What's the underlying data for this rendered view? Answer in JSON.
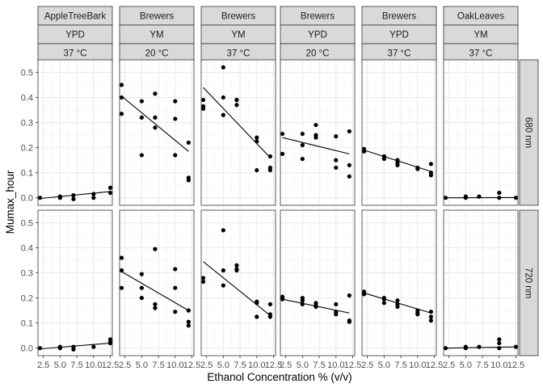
{
  "chart_data": {
    "type": "scatter",
    "xlabel": "Ethanol Concentration % (v/v)",
    "ylabel": "Mumax_hour",
    "xlim": [
      1.7,
      12.8
    ],
    "ylim": [
      -0.03,
      0.55
    ],
    "x_ticks": [
      2.5,
      5.0,
      7.5,
      10.0,
      12.5
    ],
    "x_tick_labels": [
      "2.5",
      "5.0",
      "7.5",
      "10.0",
      "12.5"
    ],
    "y_ticks": [
      0.0,
      0.1,
      0.2,
      0.3,
      0.4,
      0.5
    ],
    "y_tick_labels": [
      "0.0",
      "0.1",
      "0.2",
      "0.3",
      "0.4",
      "0.5"
    ],
    "grid": true,
    "facet_columns": [
      {
        "labels": [
          "AppleTreeBark",
          "YPD",
          "37 °C"
        ]
      },
      {
        "labels": [
          "Brewers",
          "YM",
          "20 °C"
        ]
      },
      {
        "labels": [
          "Brewers",
          "YM",
          "37 °C"
        ]
      },
      {
        "labels": [
          "Brewers",
          "YPD",
          "20 °C"
        ]
      },
      {
        "labels": [
          "Brewers",
          "YPD",
          "37 °C"
        ]
      },
      {
        "labels": [
          "OakLeaves",
          "YM",
          "37 °C"
        ]
      }
    ],
    "facet_rows": [
      "680 nm",
      "720 nm"
    ],
    "panels": [
      {
        "row": 0,
        "col": 0,
        "points": [
          [
            2,
            0.0
          ],
          [
            5,
            0.005
          ],
          [
            5,
            0.0
          ],
          [
            7,
            0.01
          ],
          [
            7,
            -0.005
          ],
          [
            10,
            0.015
          ],
          [
            10,
            0.0
          ],
          [
            12.5,
            0.02
          ],
          [
            12.5,
            0.04
          ]
        ],
        "fit": [
          [
            2,
            -0.003
          ],
          [
            12.5,
            0.025
          ]
        ]
      },
      {
        "row": 0,
        "col": 1,
        "points": [
          [
            2,
            0.45
          ],
          [
            2,
            0.4
          ],
          [
            2,
            0.335
          ],
          [
            5,
            0.385
          ],
          [
            5,
            0.32
          ],
          [
            5,
            0.17
          ],
          [
            7,
            0.415
          ],
          [
            7,
            0.32
          ],
          [
            7,
            0.28
          ],
          [
            10,
            0.385
          ],
          [
            10,
            0.315
          ],
          [
            10,
            0.17
          ],
          [
            12,
            0.22
          ],
          [
            12,
            0.08
          ],
          [
            12,
            0.07
          ]
        ],
        "fit": [
          [
            2,
            0.405
          ],
          [
            12,
            0.185
          ]
        ]
      },
      {
        "row": 0,
        "col": 2,
        "points": [
          [
            2,
            0.39
          ],
          [
            2,
            0.365
          ],
          [
            2,
            0.355
          ],
          [
            5,
            0.52
          ],
          [
            5,
            0.4
          ],
          [
            5,
            0.33
          ],
          [
            7,
            0.39
          ],
          [
            7,
            0.39
          ],
          [
            7,
            0.37
          ],
          [
            10,
            0.24
          ],
          [
            10,
            0.225
          ],
          [
            10,
            0.11
          ],
          [
            12,
            0.165
          ],
          [
            12,
            0.12
          ],
          [
            12,
            0.11
          ]
        ],
        "fit": [
          [
            2,
            0.44
          ],
          [
            12,
            0.16
          ]
        ]
      },
      {
        "row": 0,
        "col": 3,
        "points": [
          [
            2,
            0.255
          ],
          [
            2,
            0.175
          ],
          [
            5,
            0.255
          ],
          [
            5,
            0.21
          ],
          [
            5,
            0.155
          ],
          [
            7,
            0.29
          ],
          [
            7,
            0.25
          ],
          [
            7,
            0.24
          ],
          [
            10,
            0.245
          ],
          [
            10,
            0.15
          ],
          [
            10,
            0.12
          ],
          [
            12,
            0.265
          ],
          [
            12,
            0.13
          ],
          [
            12,
            0.085
          ]
        ],
        "fit": [
          [
            2,
            0.24
          ],
          [
            12,
            0.175
          ]
        ]
      },
      {
        "row": 0,
        "col": 4,
        "points": [
          [
            2,
            0.195
          ],
          [
            2,
            0.185
          ],
          [
            5,
            0.165
          ],
          [
            5,
            0.165
          ],
          [
            5,
            0.155
          ],
          [
            7,
            0.15
          ],
          [
            7,
            0.14
          ],
          [
            7,
            0.13
          ],
          [
            10,
            0.12
          ],
          [
            10,
            0.115
          ],
          [
            12,
            0.135
          ],
          [
            12,
            0.1
          ],
          [
            12,
            0.09
          ]
        ],
        "fit": [
          [
            2,
            0.19
          ],
          [
            12,
            0.105
          ]
        ]
      },
      {
        "row": 0,
        "col": 5,
        "points": [
          [
            2,
            0.0
          ],
          [
            5,
            0.0
          ],
          [
            5,
            0.005
          ],
          [
            7,
            0.005
          ],
          [
            10,
            0.02
          ],
          [
            10,
            0.0
          ],
          [
            12.5,
            0.0
          ]
        ],
        "fit": [
          [
            2,
            0.0
          ],
          [
            12.5,
            0.001
          ]
        ]
      },
      {
        "row": 1,
        "col": 0,
        "points": [
          [
            2,
            0.0
          ],
          [
            5,
            0.005
          ],
          [
            5,
            0.0
          ],
          [
            7,
            0.005
          ],
          [
            7,
            -0.005
          ],
          [
            10,
            0.005
          ],
          [
            12.5,
            0.02
          ],
          [
            12.5,
            0.035
          ],
          [
            12.5,
            0.025
          ]
        ],
        "fit": [
          [
            2,
            -0.003
          ],
          [
            12.5,
            0.02
          ]
        ]
      },
      {
        "row": 1,
        "col": 1,
        "points": [
          [
            2,
            0.36
          ],
          [
            2,
            0.31
          ],
          [
            2,
            0.24
          ],
          [
            5,
            0.295
          ],
          [
            5,
            0.24
          ],
          [
            5,
            0.2
          ],
          [
            7,
            0.395
          ],
          [
            7,
            0.175
          ],
          [
            7,
            0.16
          ],
          [
            10,
            0.315
          ],
          [
            10,
            0.24
          ],
          [
            10,
            0.145
          ],
          [
            12,
            0.15
          ],
          [
            12,
            0.105
          ],
          [
            12,
            0.09
          ]
        ],
        "fit": [
          [
            2,
            0.305
          ],
          [
            12,
            0.15
          ]
        ]
      },
      {
        "row": 1,
        "col": 2,
        "points": [
          [
            2,
            0.28
          ],
          [
            2,
            0.265
          ],
          [
            5,
            0.47
          ],
          [
            5,
            0.31
          ],
          [
            5,
            0.25
          ],
          [
            7,
            0.33
          ],
          [
            7,
            0.315
          ],
          [
            7,
            0.31
          ],
          [
            10,
            0.185
          ],
          [
            10,
            0.18
          ],
          [
            10,
            0.125
          ],
          [
            12,
            0.175
          ],
          [
            12,
            0.135
          ],
          [
            12,
            0.125
          ]
        ],
        "fit": [
          [
            2,
            0.345
          ],
          [
            12,
            0.13
          ]
        ]
      },
      {
        "row": 1,
        "col": 3,
        "points": [
          [
            2,
            0.205
          ],
          [
            2,
            0.2
          ],
          [
            2,
            0.195
          ],
          [
            5,
            0.2
          ],
          [
            5,
            0.19
          ],
          [
            5,
            0.175
          ],
          [
            7,
            0.18
          ],
          [
            7,
            0.17
          ],
          [
            7,
            0.165
          ],
          [
            10,
            0.175
          ],
          [
            10,
            0.145
          ],
          [
            10,
            0.135
          ],
          [
            12,
            0.21
          ],
          [
            12,
            0.11
          ],
          [
            12,
            0.105
          ]
        ],
        "fit": [
          [
            2,
            0.195
          ],
          [
            12,
            0.14
          ]
        ]
      },
      {
        "row": 1,
        "col": 4,
        "points": [
          [
            2,
            0.225
          ],
          [
            2,
            0.215
          ],
          [
            5,
            0.2
          ],
          [
            5,
            0.195
          ],
          [
            5,
            0.18
          ],
          [
            7,
            0.19
          ],
          [
            7,
            0.175
          ],
          [
            7,
            0.165
          ],
          [
            10,
            0.15
          ],
          [
            10,
            0.14
          ],
          [
            10,
            0.135
          ],
          [
            12,
            0.145
          ],
          [
            12,
            0.125
          ],
          [
            12,
            0.11
          ]
        ],
        "fit": [
          [
            2,
            0.22
          ],
          [
            12,
            0.14
          ]
        ]
      },
      {
        "row": 1,
        "col": 5,
        "points": [
          [
            2,
            0.0
          ],
          [
            5,
            0.005
          ],
          [
            5,
            0.0
          ],
          [
            7,
            0.005
          ],
          [
            10,
            0.035
          ],
          [
            10,
            0.02
          ],
          [
            10,
            0.0
          ],
          [
            12.5,
            0.005
          ]
        ],
        "fit": [
          [
            2,
            0.0
          ],
          [
            12.5,
            0.005
          ]
        ]
      }
    ]
  }
}
